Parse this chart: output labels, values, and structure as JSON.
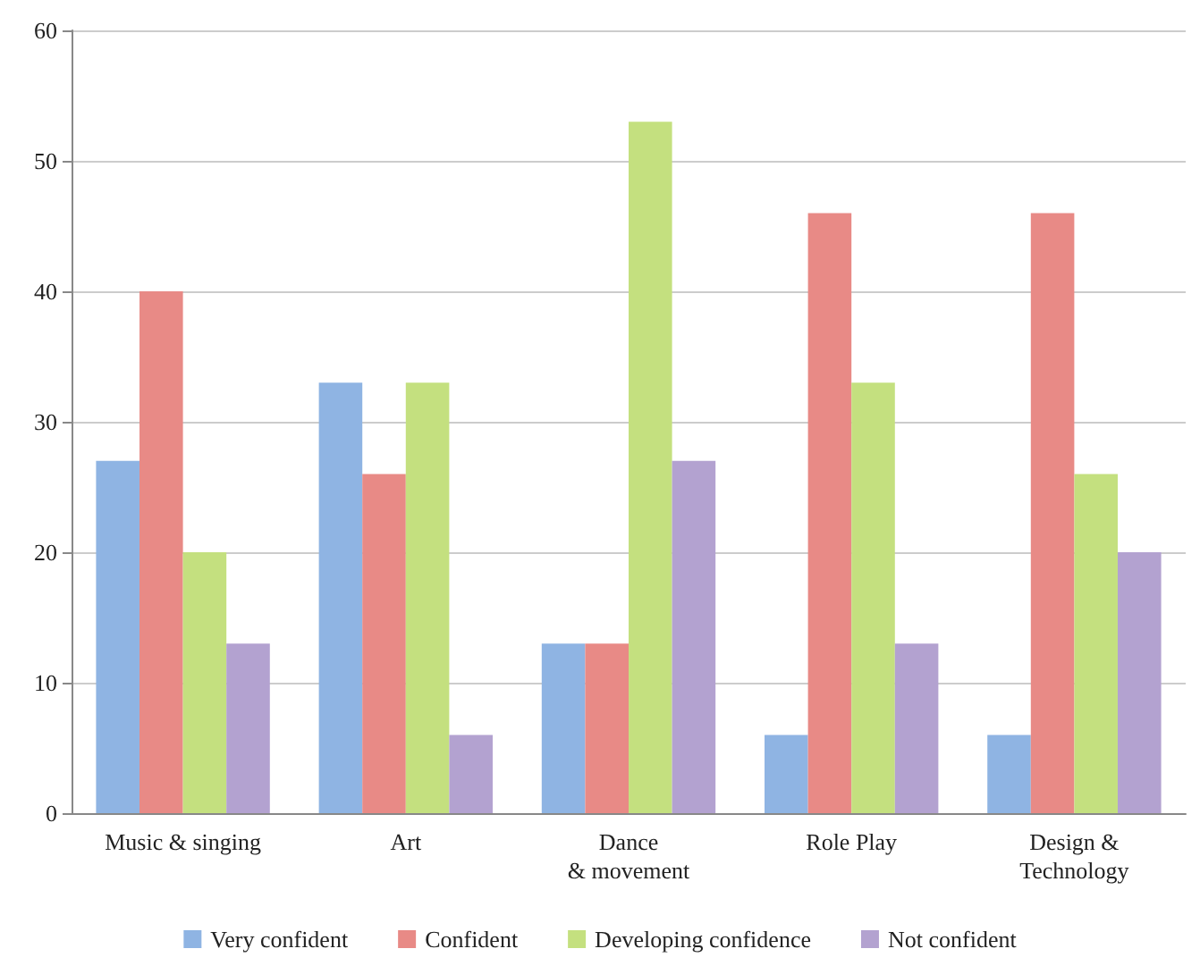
{
  "chart_data": {
    "type": "bar",
    "categories": [
      "Music & singing",
      "Art",
      "Dance\n& movement",
      "Role Play",
      "Design &\nTechnology"
    ],
    "series": [
      {
        "name": "Very confident",
        "color": "#8fb4e3",
        "values": [
          27,
          33,
          13,
          6,
          6
        ]
      },
      {
        "name": "Confident",
        "color": "#e88a86",
        "values": [
          40,
          26,
          13,
          46,
          46
        ]
      },
      {
        "name": "Developing confidence",
        "color": "#c4e07f",
        "values": [
          20,
          33,
          53,
          33,
          26
        ]
      },
      {
        "name": "Not confident",
        "color": "#b3a2d0",
        "values": [
          13,
          6,
          27,
          13,
          20
        ]
      }
    ],
    "ylim": [
      0,
      60
    ],
    "yticks": [
      0,
      10,
      20,
      30,
      40,
      50,
      60
    ],
    "grid": "y",
    "legend": "bottom"
  }
}
